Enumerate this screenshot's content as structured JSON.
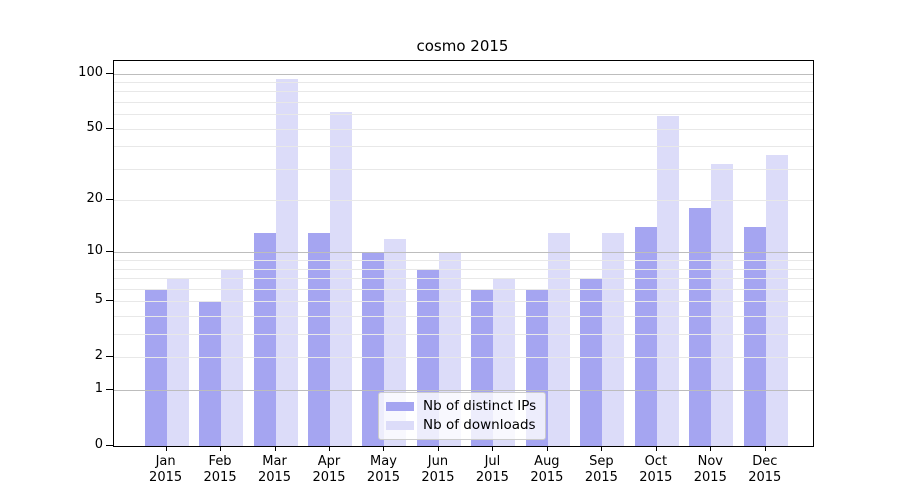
{
  "chart_data": {
    "type": "bar",
    "title": "cosmo 2015",
    "categories": [
      "Jan",
      "Feb",
      "Mar",
      "Apr",
      "May",
      "Jun",
      "Jul",
      "Aug",
      "Sep",
      "Oct",
      "Nov",
      "Dec"
    ],
    "category_year": "2015",
    "series": [
      {
        "name": "Nb of distinct IPs",
        "color": "#a5a5f1",
        "values": [
          6,
          5,
          13,
          13,
          10,
          8,
          6,
          6,
          7,
          14,
          18,
          14
        ]
      },
      {
        "name": "Nb of downloads",
        "color": "#dcdcf9",
        "values": [
          7,
          8,
          94,
          62,
          12,
          10,
          7,
          13,
          13,
          59,
          32,
          36
        ]
      }
    ],
    "xlabel": "",
    "ylabel": "",
    "y_axis": {
      "scale": "log1p",
      "ylim": [
        0,
        117
      ],
      "tick_values": [
        0,
        1,
        2,
        5,
        10,
        20,
        50,
        100
      ],
      "major_gridlines": [
        1,
        10,
        100
      ],
      "minor_gridlines": [
        3,
        4,
        6,
        7,
        8,
        9,
        30,
        40,
        60,
        70,
        80,
        90
      ],
      "grid_major_color": "#bdbdbd",
      "grid_minor_color": "#e8e8e8"
    },
    "legend": {
      "position": "lower center",
      "entries": [
        "Nb of distinct IPs",
        "Nb of downloads"
      ]
    }
  }
}
